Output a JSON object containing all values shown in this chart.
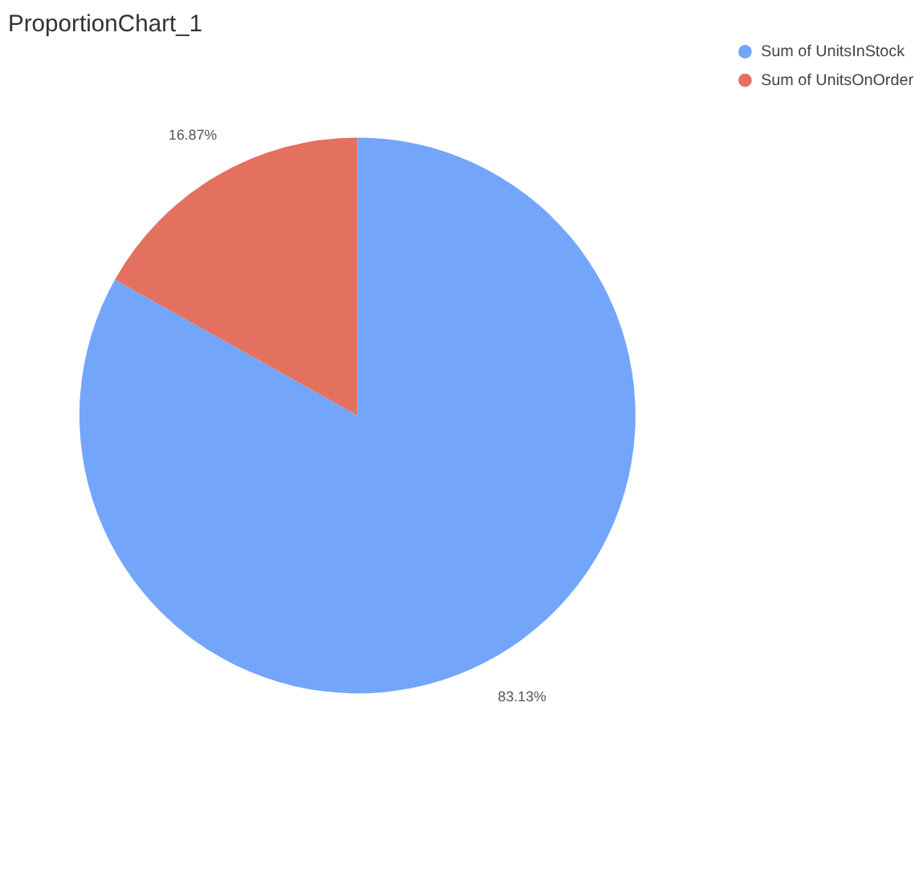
{
  "chart_data": {
    "type": "pie",
    "title": "ProportionChart_1",
    "categories": [
      "Sum of UnitsInStock",
      "Sum of UnitsOnOrder"
    ],
    "values": [
      83.13,
      16.87
    ],
    "colors": [
      "#73a5fb",
      "#e47060"
    ],
    "value_labels": [
      "83.13%",
      "16.87%"
    ],
    "legend": "right"
  }
}
